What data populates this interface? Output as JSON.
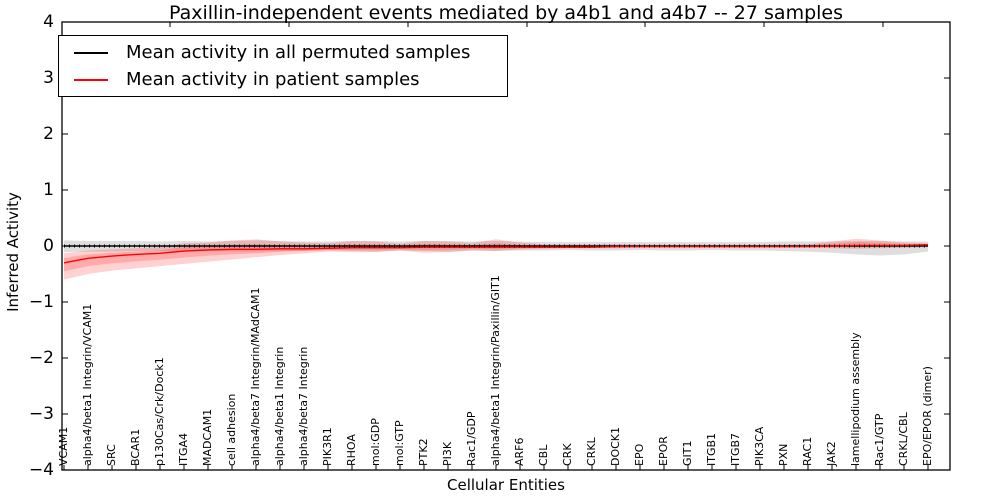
{
  "chart_data": {
    "type": "line",
    "title": "Paxillin-independent events mediated by a4b1 and a4b7 -- 27 samples",
    "xlabel": "Cellular Entities",
    "ylabel": "Inferred Activity",
    "ylim": [
      -4,
      4
    ],
    "yticks": [
      4,
      3,
      2,
      1,
      0,
      -1,
      -2,
      -3,
      -4
    ],
    "grid": false,
    "legend_position": "upper left",
    "zero_reference_line": "black dotted",
    "categories": [
      "VCAM1",
      "alpha4/beta1 Integrin/VCAM1",
      "SRC",
      "BCAR1",
      "p130Cas/Crk/Dock1",
      "ITGA4",
      "MADCAM1",
      "cell adhesion",
      "alpha4/beta7 Integrin/MAdCAM1",
      "alpha4/beta1 Integrin",
      "alpha4/beta7 Integrin",
      "PIK3R1",
      "RHOA",
      "mol:GDP",
      "mol:GTP",
      "PTK2",
      "PI3K",
      "Rac1/GDP",
      "alpha4/beta1 Integrin/Paxillin/GIT1",
      "ARF6",
      "CBL",
      "CRK",
      "CRKL",
      "DOCK1",
      "EPO",
      "EPOR",
      "GIT1",
      "ITGB1",
      "ITGB7",
      "PIK3CA",
      "PXN",
      "RAC1",
      "JAK2",
      "lamellipodium assembly",
      "Rac1/GTP",
      "CRKL/CBL",
      "EPO/EPOR (dimer)"
    ],
    "series": [
      {
        "name": "Mean activity in all permuted samples",
        "color": "#000000",
        "band_color": "rgba(0,0,0,0.13)",
        "values": [
          0,
          0,
          0,
          0,
          0,
          0,
          0,
          0,
          0,
          0,
          0,
          0,
          0,
          0,
          0,
          0,
          0,
          0,
          0,
          0,
          0,
          0,
          0,
          0,
          0,
          0,
          0,
          0,
          0,
          0,
          0,
          0,
          0,
          0,
          0,
          0,
          0
        ],
        "band_low": [
          -0.11,
          -0.1,
          -0.1,
          -0.09,
          -0.09,
          -0.1,
          -0.09,
          -0.1,
          -0.1,
          -0.09,
          -0.09,
          -0.08,
          -0.09,
          -0.1,
          -0.08,
          -0.09,
          -0.1,
          -0.08,
          -0.09,
          -0.08,
          -0.08,
          -0.07,
          -0.08,
          -0.08,
          -0.07,
          -0.08,
          -0.08,
          -0.07,
          -0.08,
          -0.08,
          -0.09,
          -0.1,
          -0.12,
          -0.15,
          -0.17,
          -0.15,
          -0.1
        ],
        "band_high": [
          0.1,
          0.09,
          0.09,
          0.09,
          0.08,
          0.09,
          0.08,
          0.09,
          0.1,
          0.09,
          0.08,
          0.08,
          0.09,
          0.09,
          0.08,
          0.09,
          0.09,
          0.08,
          0.09,
          0.08,
          0.07,
          0.07,
          0.07,
          0.07,
          0.07,
          0.07,
          0.07,
          0.07,
          0.07,
          0.07,
          0.08,
          0.08,
          0.08,
          0.09,
          0.09,
          0.08,
          0.08
        ]
      },
      {
        "name": "Mean activity in patient samples",
        "color": "#ff0000",
        "band_color": "rgba(255,0,0,0.18)",
        "values": [
          -0.3,
          -0.22,
          -0.18,
          -0.15,
          -0.13,
          -0.09,
          -0.07,
          -0.06,
          -0.06,
          -0.05,
          -0.05,
          -0.04,
          -0.03,
          -0.03,
          -0.03,
          -0.02,
          -0.02,
          -0.02,
          -0.02,
          -0.02,
          -0.02,
          -0.02,
          -0.02,
          -0.01,
          -0.01,
          -0.01,
          -0.01,
          -0.01,
          -0.01,
          -0.01,
          -0.01,
          -0.01,
          0.0,
          0.01,
          0.01,
          0.01,
          0.02
        ],
        "band_low": [
          -0.6,
          -0.5,
          -0.44,
          -0.4,
          -0.36,
          -0.32,
          -0.28,
          -0.24,
          -0.2,
          -0.16,
          -0.13,
          -0.1,
          -0.11,
          -0.11,
          -0.08,
          -0.12,
          -0.11,
          -0.08,
          -0.09,
          -0.06,
          -0.05,
          -0.04,
          -0.04,
          -0.04,
          -0.03,
          -0.03,
          -0.03,
          -0.03,
          -0.03,
          -0.03,
          -0.03,
          -0.03,
          -0.04,
          -0.05,
          -0.04,
          -0.03,
          -0.02
        ],
        "band_high": [
          -0.13,
          -0.08,
          -0.06,
          -0.04,
          -0.02,
          0.05,
          0.06,
          0.1,
          0.12,
          0.08,
          0.06,
          0.05,
          0.09,
          0.08,
          0.04,
          0.09,
          0.08,
          0.05,
          0.12,
          0.06,
          0.03,
          0.03,
          0.03,
          0.03,
          0.02,
          0.02,
          0.02,
          0.02,
          0.02,
          0.02,
          0.02,
          0.03,
          0.08,
          0.13,
          0.1,
          0.06,
          0.05
        ]
      }
    ]
  }
}
